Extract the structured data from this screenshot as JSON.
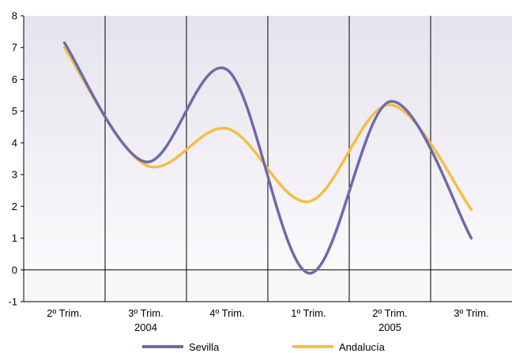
{
  "chart_data": {
    "type": "line",
    "title": "",
    "xlabel": "",
    "ylabel": "",
    "ylim": [
      -1,
      8
    ],
    "y_ticks": [
      -1,
      0,
      1,
      2,
      3,
      4,
      5,
      6,
      7,
      8
    ],
    "categories": [
      "2º Trim.",
      "3º Trim.",
      "4º Trim.",
      "1º Trim.",
      "2º Trim.",
      "3º Trim."
    ],
    "year_labels": [
      {
        "label": "2004",
        "category_index": 1
      },
      {
        "label": "2005",
        "category_index": 4
      }
    ],
    "grid": "vertical lines between categories",
    "legend_position": "bottom",
    "series": [
      {
        "name": "Sevilla",
        "color": "#6E6AAA",
        "values": [
          7.15,
          3.4,
          6.3,
          -0.1,
          5.3,
          1.0
        ]
      },
      {
        "name": "Andalucía",
        "color": "#F5BE45",
        "values": [
          7.0,
          3.3,
          4.45,
          2.15,
          5.2,
          1.9
        ]
      }
    ]
  }
}
